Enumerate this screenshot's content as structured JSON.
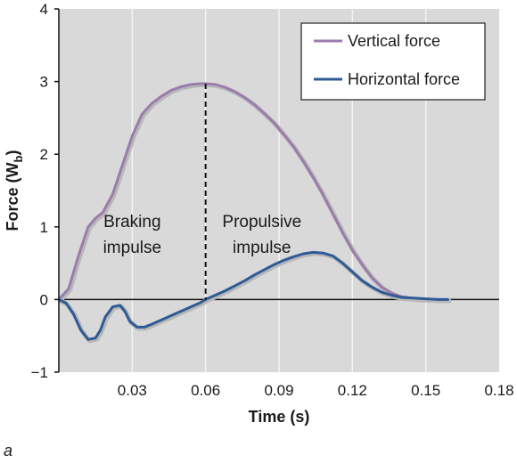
{
  "chart_data": {
    "type": "line",
    "title": "",
    "xlabel": "Time (s)",
    "ylabel_main": "Force (W",
    "ylabel_sub": "b",
    "ylabel_close": ")",
    "xlim": [
      0,
      0.18
    ],
    "ylim": [
      -1,
      4
    ],
    "xticks": [
      0.03,
      0.06,
      0.09,
      0.12,
      0.15,
      0.18
    ],
    "xtick_labels": [
      "0.03",
      "0.06",
      "0.09",
      "0.12",
      "0.15",
      "0.18"
    ],
    "yticks": [
      -1,
      0,
      1,
      2,
      3,
      4
    ],
    "ytick_labels": [
      "−1",
      "0",
      "1",
      "2",
      "3",
      "4"
    ],
    "grid": "vertical",
    "legend_position": "top-right",
    "background": "#d9d9d9",
    "series": [
      {
        "name": "Vertical force",
        "color": "#9b7cac",
        "x": [
          0,
          0.004,
          0.008,
          0.012,
          0.015,
          0.018,
          0.022,
          0.026,
          0.03,
          0.034,
          0.038,
          0.042,
          0.046,
          0.05,
          0.054,
          0.058,
          0.06,
          0.064,
          0.068,
          0.072,
          0.076,
          0.08,
          0.084,
          0.088,
          0.092,
          0.096,
          0.1,
          0.104,
          0.108,
          0.112,
          0.116,
          0.12,
          0.124,
          0.128,
          0.132,
          0.136,
          0.14,
          0.144,
          0.148,
          0.152,
          0.156,
          0.159
        ],
        "y": [
          0,
          0.15,
          0.6,
          1.0,
          1.12,
          1.2,
          1.45,
          1.85,
          2.25,
          2.55,
          2.7,
          2.8,
          2.88,
          2.93,
          2.96,
          2.97,
          2.97,
          2.96,
          2.92,
          2.86,
          2.78,
          2.68,
          2.56,
          2.43,
          2.27,
          2.1,
          1.9,
          1.68,
          1.44,
          1.18,
          0.92,
          0.68,
          0.48,
          0.3,
          0.17,
          0.09,
          0.04,
          0.02,
          0.01,
          0.005,
          0,
          0
        ]
      },
      {
        "name": "Horizontal force",
        "color": "#2e5b96",
        "x": [
          0,
          0.003,
          0.006,
          0.009,
          0.012,
          0.015,
          0.017,
          0.019,
          0.022,
          0.025,
          0.027,
          0.029,
          0.032,
          0.035,
          0.038,
          0.042,
          0.046,
          0.05,
          0.054,
          0.058,
          0.06,
          0.064,
          0.068,
          0.072,
          0.076,
          0.08,
          0.084,
          0.088,
          0.092,
          0.096,
          0.1,
          0.104,
          0.108,
          0.112,
          0.116,
          0.12,
          0.124,
          0.128,
          0.132,
          0.136,
          0.14,
          0.145,
          0.15,
          0.155,
          0.159
        ],
        "y": [
          0,
          -0.05,
          -0.2,
          -0.42,
          -0.55,
          -0.53,
          -0.42,
          -0.24,
          -0.1,
          -0.08,
          -0.16,
          -0.3,
          -0.38,
          -0.38,
          -0.34,
          -0.28,
          -0.22,
          -0.16,
          -0.1,
          -0.04,
          0,
          0.06,
          0.12,
          0.19,
          0.26,
          0.34,
          0.41,
          0.48,
          0.54,
          0.59,
          0.63,
          0.65,
          0.64,
          0.6,
          0.5,
          0.38,
          0.26,
          0.17,
          0.1,
          0.06,
          0.03,
          0.02,
          0.01,
          0,
          0
        ]
      }
    ],
    "annotations": [
      {
        "line1": "Braking",
        "line2": "impulse",
        "x": 0.03,
        "y": 0.9
      },
      {
        "line1": "Propulsive",
        "line2": "impulse",
        "x": 0.083,
        "y": 0.9
      }
    ],
    "divider_x": 0.06,
    "panel_label": "a"
  }
}
